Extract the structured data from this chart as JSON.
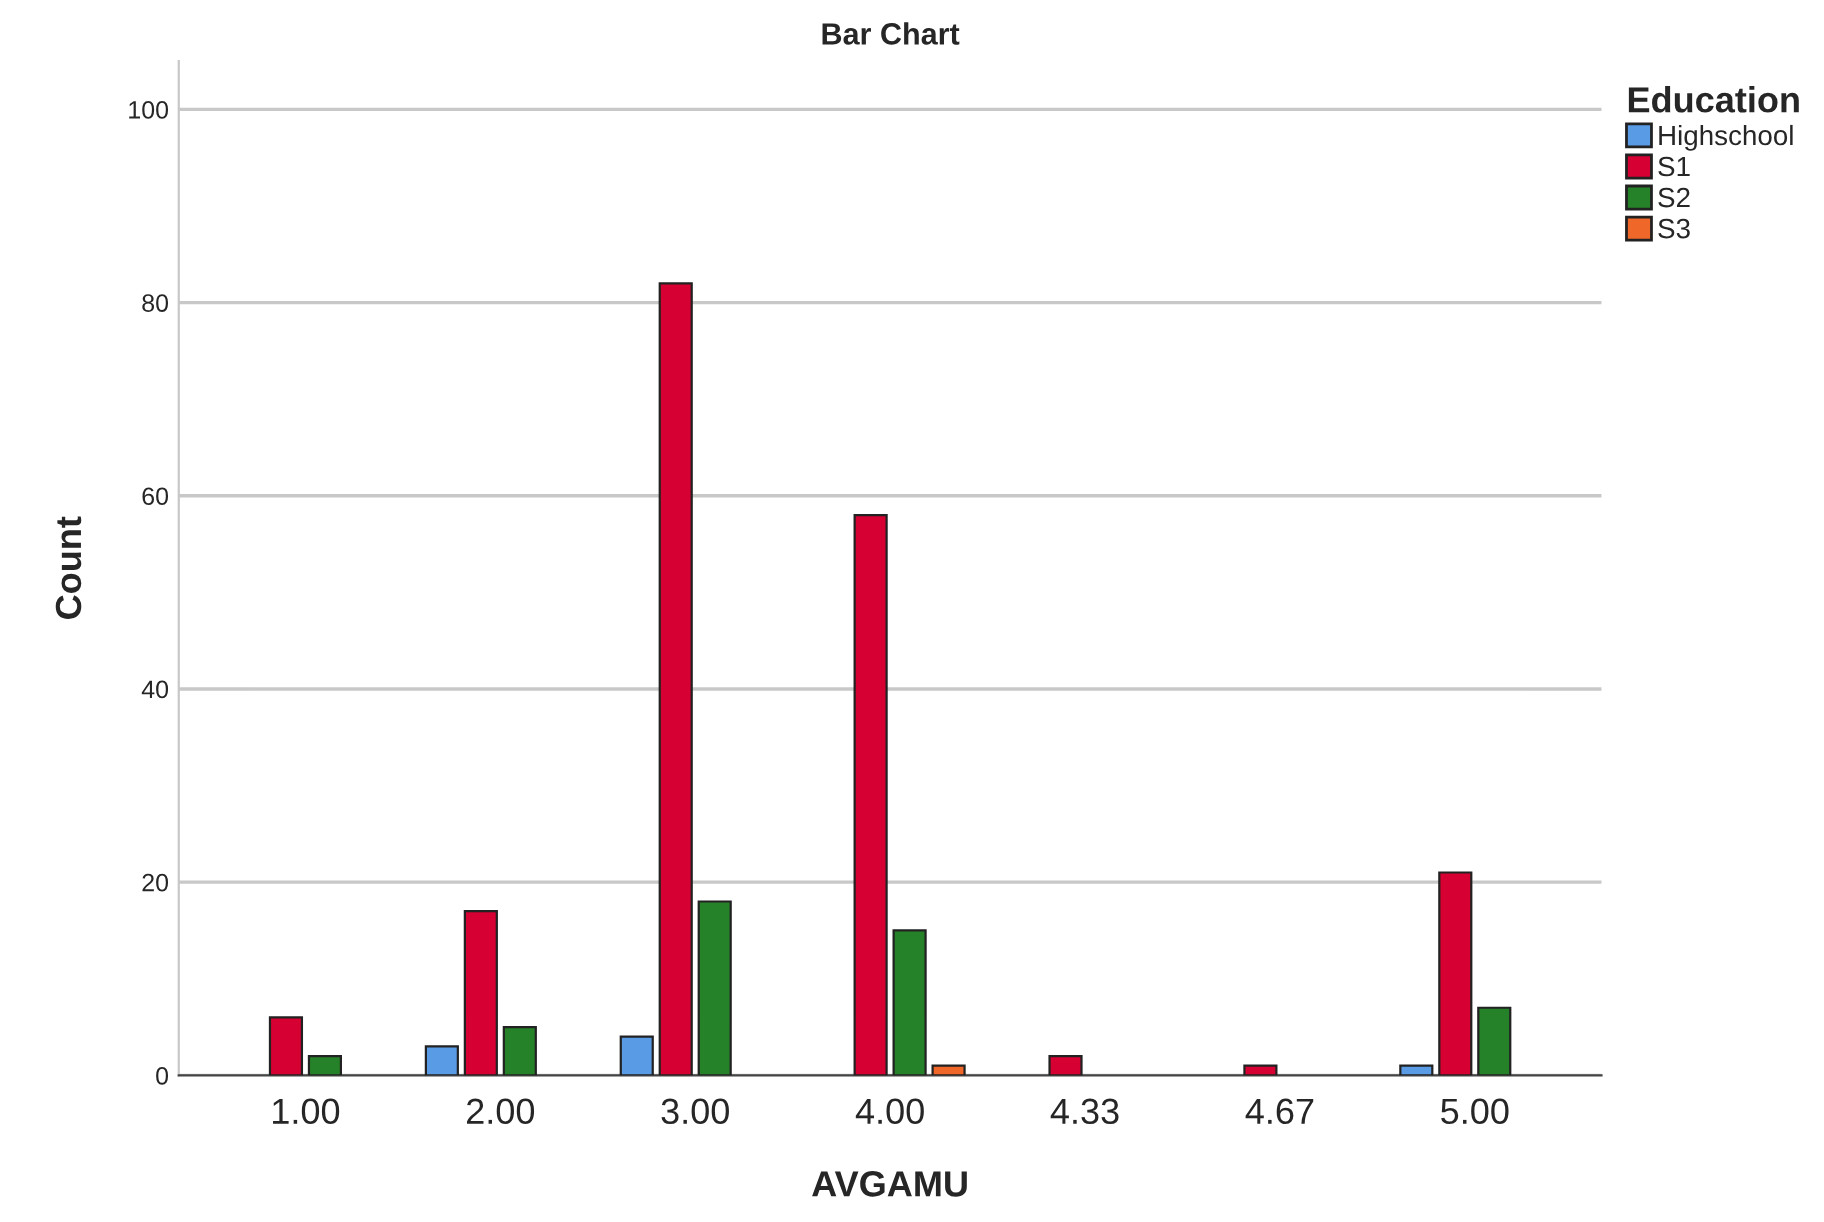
{
  "chart_data": {
    "type": "bar",
    "title": "Bar Chart",
    "xlabel": "AVGAMU",
    "ylabel": "Count",
    "legend_title": "Education",
    "categories": [
      "1.00",
      "2.00",
      "3.00",
      "4.00",
      "4.33",
      "4.67",
      "5.00"
    ],
    "series": [
      {
        "name": "Highschool",
        "color": "#5a9be6",
        "values": [
          null,
          3,
          4,
          null,
          null,
          null,
          1
        ]
      },
      {
        "name": "S1",
        "color": "#d60032",
        "values": [
          6,
          17,
          82,
          58,
          2,
          1,
          21
        ]
      },
      {
        "name": "S2",
        "color": "#268228",
        "values": [
          2,
          5,
          18,
          15,
          null,
          null,
          7
        ]
      },
      {
        "name": "S3",
        "color": "#f0672a",
        "values": [
          null,
          null,
          null,
          1,
          null,
          null,
          null
        ]
      }
    ],
    "ylim": [
      0,
      105
    ],
    "yticks": [
      0,
      20,
      40,
      60,
      80,
      100
    ],
    "grid": "y",
    "legend": "top right"
  }
}
